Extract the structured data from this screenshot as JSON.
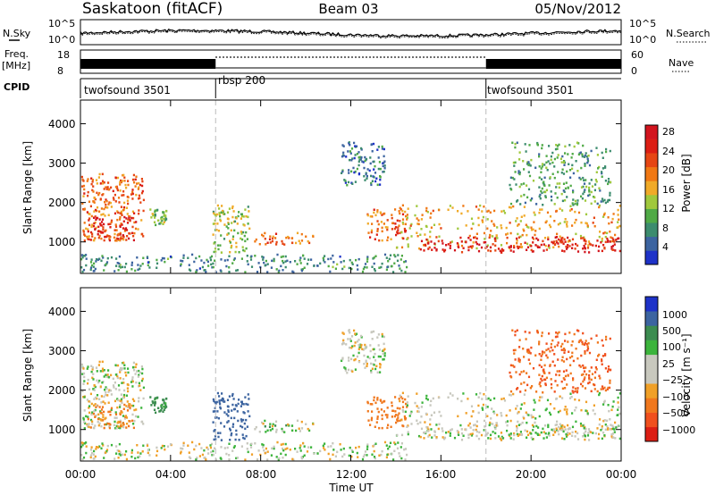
{
  "header": {
    "station": "Saskatoon (fitACF)",
    "beam": "Beam 03",
    "date": "05/Nov/2012"
  },
  "noise_panel": {
    "left_label": "N.Sky",
    "right_label": "N.Search",
    "left_ticks": [
      "10^5",
      "10^0"
    ],
    "right_ticks": [
      "10^5",
      "10^0"
    ]
  },
  "freq_panel": {
    "left_label_line1": "Freq.",
    "left_label_line2": "[MHz]",
    "right_label": "Nave",
    "left_ticks": [
      "18",
      "8"
    ],
    "right_ticks": [
      "60",
      "0"
    ]
  },
  "cpid": {
    "label": "CPID",
    "segments": [
      {
        "name": "twofsound 3501",
        "start_hour": 0,
        "end_hour": 6
      },
      {
        "name": "rbsp 200",
        "start_hour": 6,
        "end_hour": 18
      },
      {
        "name": "twofsound 3501",
        "start_hour": 18,
        "end_hour": 24
      }
    ]
  },
  "x_axis": {
    "label": "Time UT",
    "ticks": [
      "00:00",
      "04:00",
      "08:00",
      "12:00",
      "16:00",
      "20:00",
      "00:00"
    ],
    "range_hours": [
      0,
      24
    ]
  },
  "power_panel": {
    "ylabel": "Slant Range [km]",
    "yticks": [
      "1000",
      "2000",
      "3000",
      "4000"
    ],
    "colorbar_label": "Power [dB]",
    "colorbar_ticks": [
      "4",
      "8",
      "12",
      "16",
      "20",
      "24",
      "28"
    ]
  },
  "velocity_panel": {
    "ylabel": "Slant Range [km]",
    "yticks": [
      "1000",
      "2000",
      "3000",
      "4000"
    ],
    "colorbar_label": "Velocity [m s⁻¹]",
    "colorbar_ticks": [
      "1000",
      "500",
      "100",
      "25",
      "−25",
      "−100",
      "−500",
      "−1000"
    ]
  },
  "chart_data": {
    "type": "heatmap",
    "x_range_hours": [
      0,
      24
    ],
    "y_range_km": [
      200,
      4600
    ],
    "power_colorbar": {
      "colors": [
        "#1e32c8",
        "#3c64a0",
        "#3c8c6e",
        "#50aa46",
        "#a0c83c",
        "#f0aa28",
        "#f07814",
        "#e64614",
        "#dc1e14",
        "#d2141e"
      ],
      "range_db": [
        0,
        32
      ]
    },
    "velocity_colorbar": {
      "colors": [
        "#dc1e14",
        "#f0501e",
        "#f0781e",
        "#f0a028",
        "#c8c8be",
        "#c8c8be",
        "#3cb43c",
        "#3c8c50",
        "#3c64a0",
        "#1e32c8"
      ]
    },
    "echo_regions": [
      {
        "t0": 0.0,
        "t1": 2.8,
        "r0": 1000,
        "r1": 2700,
        "power_db": 22,
        "velocity": 0
      },
      {
        "t0": 0.3,
        "t1": 2.5,
        "r0": 1000,
        "r1": 1600,
        "power_db": 27,
        "velocity": -80
      },
      {
        "t0": 3.0,
        "t1": 3.8,
        "r0": 1400,
        "r1": 1800,
        "power_db": 12,
        "velocity": 100
      },
      {
        "t0": 5.8,
        "t1": 7.5,
        "r0": 700,
        "r1": 1900,
        "power_db": 14,
        "velocity": 500
      },
      {
        "t0": 7.7,
        "t1": 10.3,
        "r0": 900,
        "r1": 1200,
        "power_db": 22,
        "velocity": 20
      },
      {
        "t0": 0.0,
        "t1": 14.5,
        "r0": 200,
        "r1": 650,
        "power_db": 8,
        "velocity": 0
      },
      {
        "t0": 11.5,
        "t1": 13.5,
        "r0": 2400,
        "r1": 3500,
        "power_db": 6,
        "velocity": 0
      },
      {
        "t0": 12.7,
        "t1": 14.5,
        "r0": 1000,
        "r1": 1800,
        "power_db": 22,
        "velocity": -200
      },
      {
        "t0": 14.0,
        "t1": 24.0,
        "r0": 800,
        "r1": 1900,
        "power_db": 18,
        "velocity": 0
      },
      {
        "t0": 15.0,
        "t1": 24.0,
        "r0": 700,
        "r1": 1100,
        "power_db": 28,
        "velocity": 0
      },
      {
        "t0": 19.0,
        "t1": 23.5,
        "r0": 1900,
        "r1": 3500,
        "power_db": 10,
        "velocity": -300
      }
    ]
  }
}
